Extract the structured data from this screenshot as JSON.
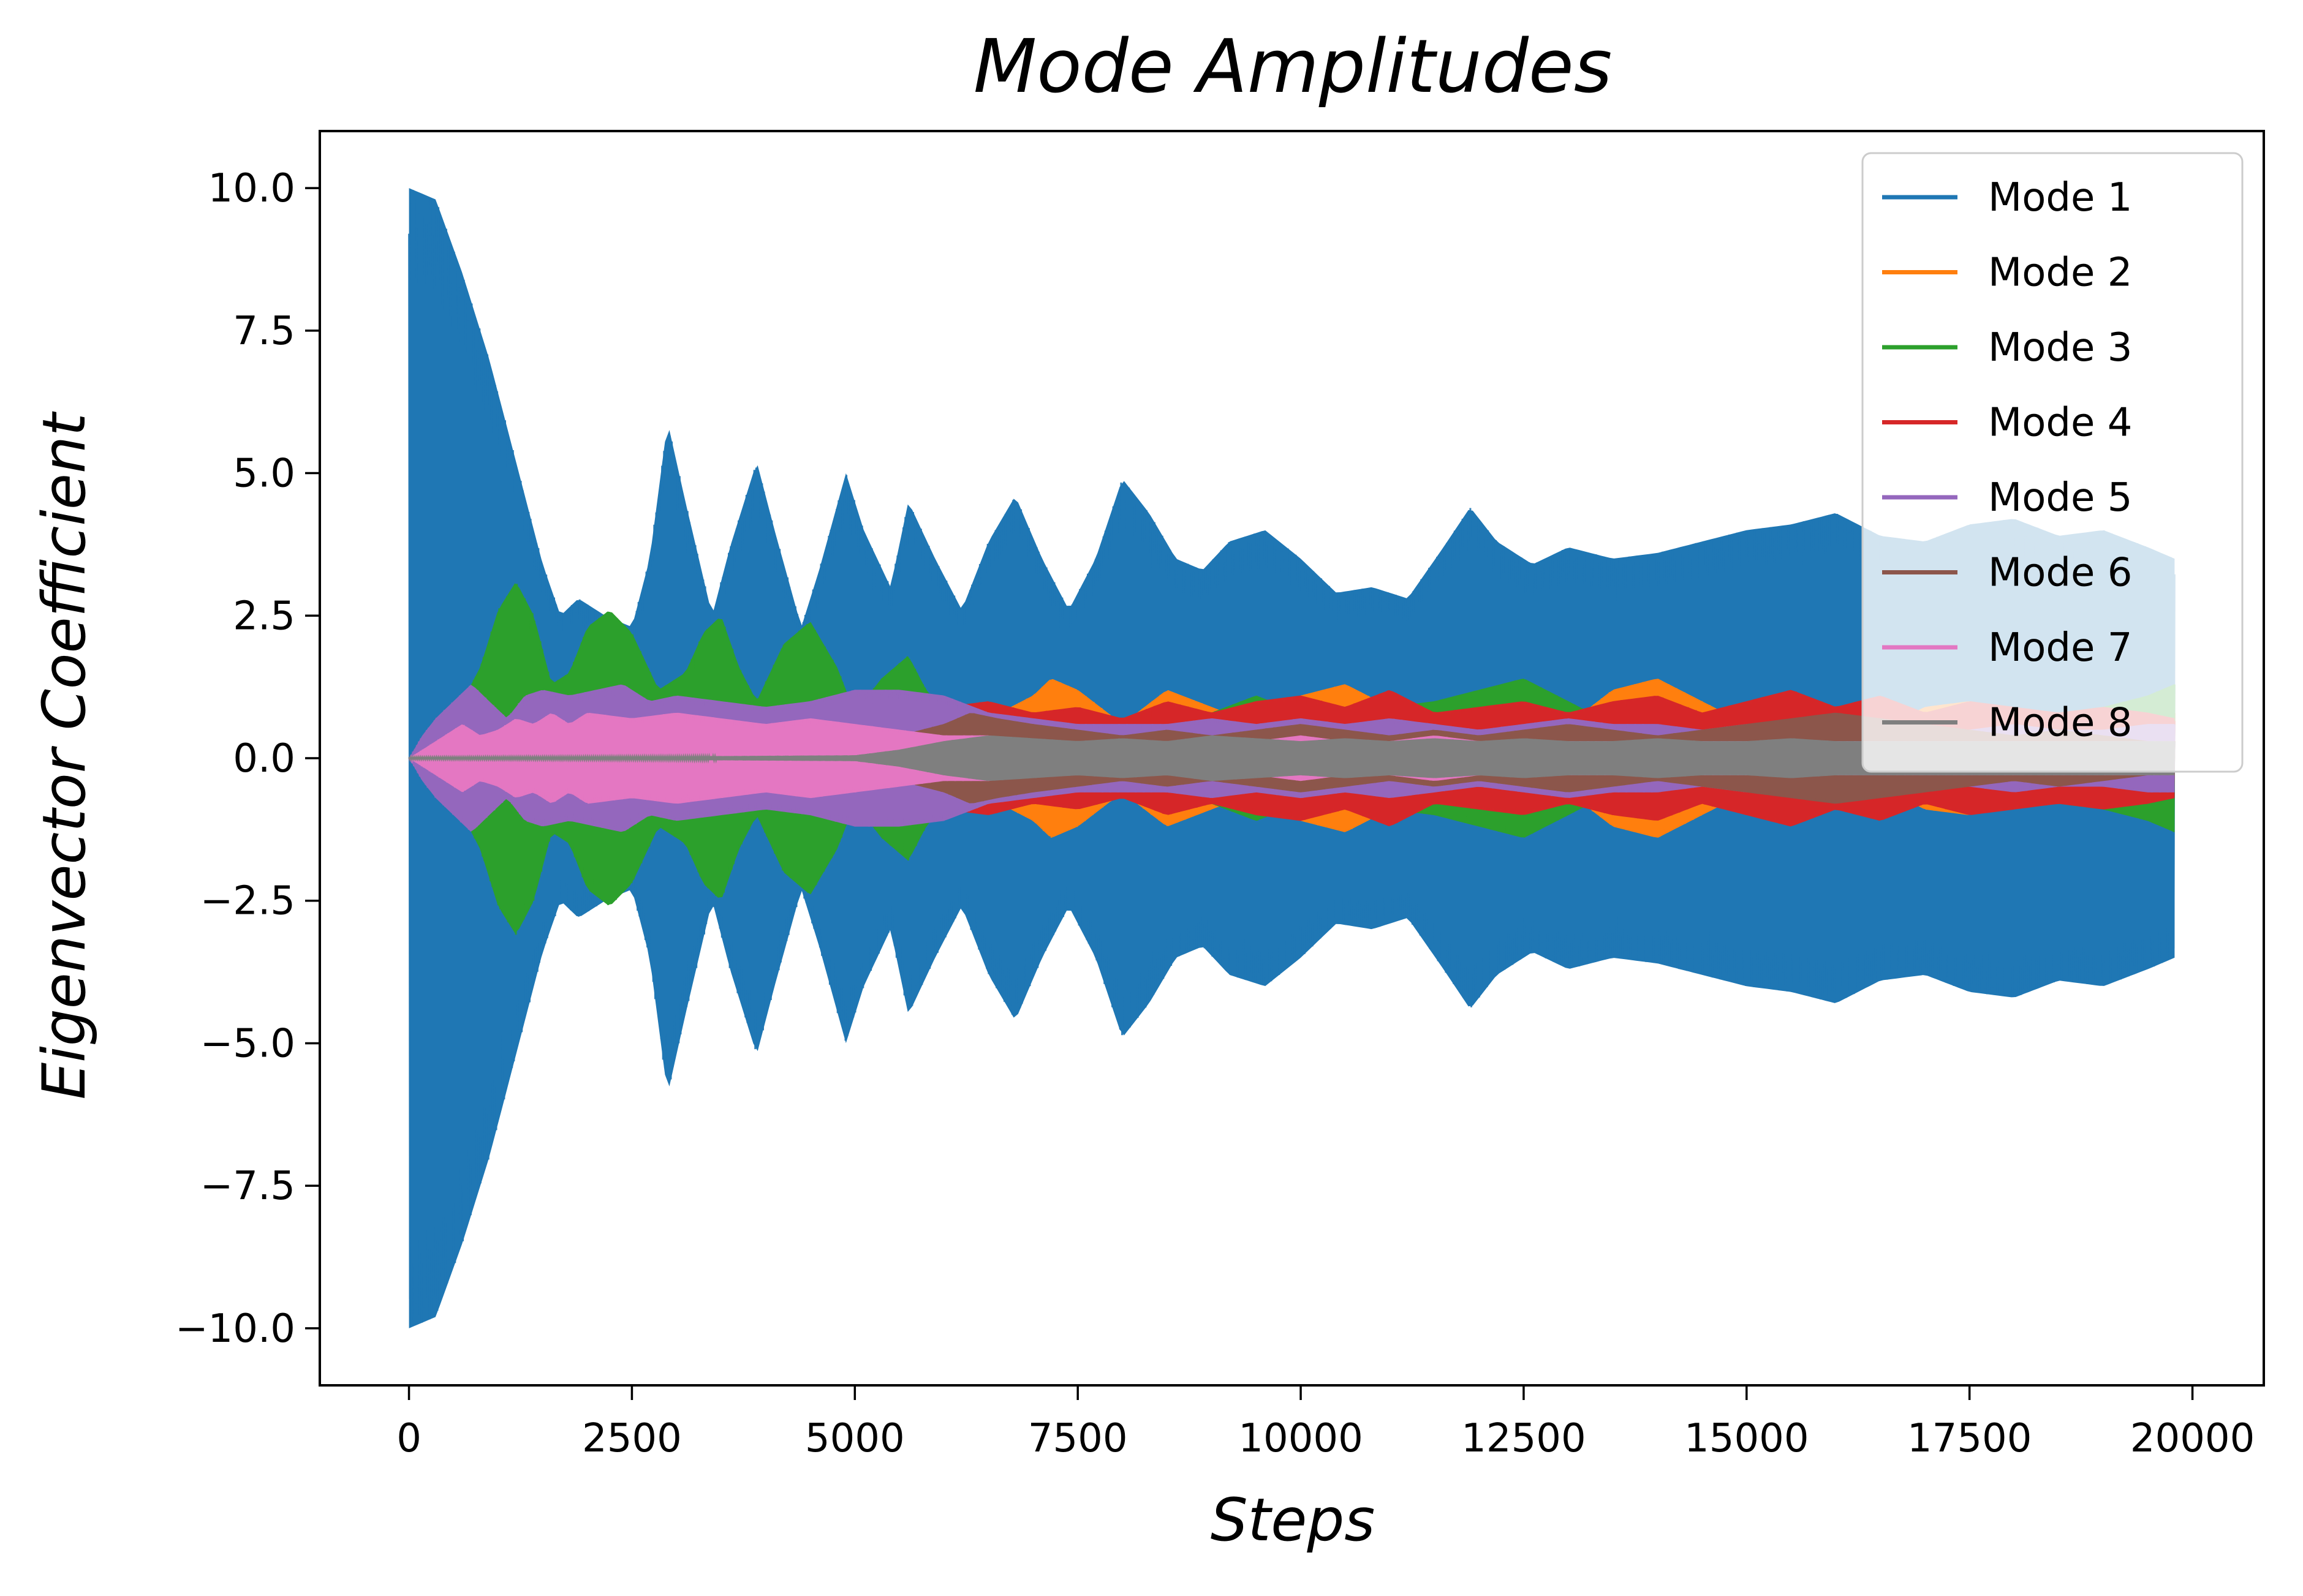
{
  "chart_data": {
    "type": "line",
    "title": "Mode Amplitudes",
    "xlabel": "Steps",
    "ylabel": "Eigenvector Coefficient",
    "xlim": [
      -1000,
      20800
    ],
    "ylim": [
      -11,
      11
    ],
    "xticks": [
      0,
      2500,
      5000,
      7500,
      10000,
      12500,
      15000,
      17500,
      20000
    ],
    "xtick_labels": [
      "0",
      "2500",
      "5000",
      "7500",
      "10000",
      "12500",
      "15000",
      "17500",
      "20000"
    ],
    "yticks": [
      10.0,
      7.5,
      5.0,
      2.5,
      0.0,
      -2.5,
      -5.0,
      -7.5,
      -10.0
    ],
    "ytick_labels": [
      "10.0",
      "7.5",
      "5.0",
      "2.5",
      "0.0",
      "−2.5",
      "−5.0",
      "−7.5",
      "−10.0"
    ],
    "grid": false,
    "legend_position": "top-right",
    "x_range": [
      0,
      19800
    ],
    "note_series_shape": "dense oscillations; values below are the upper envelope (amplitude); the lower envelope mirrors it",
    "series": [
      {
        "name": "Mode 1",
        "color": "#1f77b4",
        "envelope_x": [
          0,
          300,
          600,
          900,
          1200,
          1500,
          1700,
          1900,
          2200,
          2500,
          2700,
          2900,
          3100,
          3400,
          3600,
          3900,
          4100,
          4400,
          4600,
          4900,
          5100,
          5400,
          5600,
          5900,
          6200,
          6500,
          6800,
          7100,
          7400,
          7700,
          8000,
          8300,
          8600,
          8900,
          9200,
          9600,
          10000,
          10400,
          10800,
          11200,
          11600,
          11900,
          12200,
          12600,
          13000,
          13500,
          14000,
          14500,
          15000,
          15500,
          16000,
          16500,
          17000,
          17500,
          18000,
          18500,
          19000,
          19500,
          19800
        ],
        "envelope": [
          10.0,
          9.8,
          8.5,
          7.0,
          5.2,
          3.4,
          2.5,
          2.8,
          2.5,
          2.3,
          3.5,
          5.9,
          4.5,
          2.5,
          3.7,
          5.2,
          4.0,
          2.3,
          3.3,
          5.0,
          4.0,
          3.0,
          4.5,
          3.5,
          2.6,
          3.8,
          4.6,
          3.5,
          2.6,
          3.5,
          4.9,
          4.3,
          3.5,
          3.3,
          3.8,
          4.0,
          3.5,
          2.9,
          3.0,
          2.8,
          3.7,
          4.4,
          3.8,
          3.4,
          3.7,
          3.5,
          3.6,
          3.8,
          4.0,
          4.1,
          4.3,
          3.9,
          3.8,
          4.1,
          4.2,
          3.9,
          4.0,
          3.7,
          3.5
        ]
      },
      {
        "name": "Mode 2",
        "color": "#ff7f0e",
        "envelope_x": [
          0,
          4000,
          5500,
          6500,
          7000,
          7200,
          7500,
          8000,
          8500,
          9000,
          9500,
          10000,
          10500,
          11000,
          11500,
          12000,
          12500,
          13000,
          13500,
          14000,
          14500,
          15000,
          15500,
          16000,
          16500,
          17000,
          17500,
          18000,
          18500,
          19000,
          19500,
          19800
        ],
        "envelope": [
          0.0,
          0.05,
          0.2,
          0.7,
          1.1,
          1.4,
          1.2,
          0.6,
          1.2,
          0.9,
          0.6,
          1.1,
          1.3,
          0.9,
          0.5,
          0.6,
          0.8,
          0.6,
          1.2,
          1.4,
          1.0,
          0.6,
          0.8,
          0.9,
          0.5,
          0.9,
          1.0,
          0.7,
          0.5,
          0.8,
          0.9,
          0.8
        ]
      },
      {
        "name": "Mode 3",
        "color": "#2ca02c",
        "envelope_x": [
          0,
          250,
          500,
          800,
          1000,
          1200,
          1400,
          1600,
          1800,
          2000,
          2250,
          2500,
          2800,
          3100,
          3300,
          3500,
          3700,
          3900,
          4200,
          4500,
          4800,
          5000,
          5300,
          5600,
          5800,
          6100,
          6500,
          7000,
          7500,
          8000,
          8500,
          9000,
          9500,
          10000,
          10500,
          11000,
          11500,
          12000,
          12500,
          13000,
          13500,
          14000,
          14500,
          15000,
          15500,
          16000,
          16500,
          17000,
          17500,
          18000,
          18500,
          19000,
          19500,
          19800
        ],
        "envelope": [
          0.0,
          0.6,
          0.7,
          1.6,
          2.6,
          3.1,
          2.5,
          1.3,
          1.5,
          2.3,
          2.6,
          2.2,
          1.2,
          1.5,
          2.2,
          2.5,
          1.6,
          1.0,
          2.0,
          2.4,
          1.6,
          0.8,
          1.4,
          1.8,
          1.2,
          0.6,
          0.5,
          0.4,
          0.5,
          0.6,
          0.6,
          0.8,
          1.1,
          0.8,
          0.6,
          0.9,
          1.0,
          1.2,
          1.4,
          1.0,
          0.6,
          0.7,
          0.8,
          0.5,
          0.6,
          0.7,
          0.5,
          0.5,
          0.6,
          0.7,
          0.8,
          0.9,
          1.1,
          1.3
        ]
      },
      {
        "name": "Mode 4",
        "color": "#d62728",
        "envelope_x": [
          0,
          4000,
          5000,
          5500,
          6000,
          6500,
          7000,
          7500,
          8000,
          8500,
          9000,
          9500,
          10000,
          10500,
          11000,
          11500,
          12000,
          12500,
          13000,
          13500,
          14000,
          14500,
          15000,
          15500,
          16000,
          16500,
          17000,
          17500,
          18000,
          18500,
          19000,
          19500,
          19800
        ],
        "envelope": [
          0.0,
          0.1,
          0.3,
          0.6,
          0.9,
          1.0,
          0.8,
          0.9,
          0.7,
          1.0,
          0.8,
          1.0,
          1.1,
          0.9,
          1.2,
          0.8,
          0.9,
          1.0,
          0.8,
          1.0,
          1.1,
          0.8,
          1.0,
          1.2,
          0.9,
          1.1,
          0.8,
          1.0,
          0.9,
          0.8,
          0.9,
          0.8,
          0.7
        ]
      },
      {
        "name": "Mode 5",
        "color": "#9467bd",
        "envelope_x": [
          0,
          150,
          300,
          500,
          700,
          900,
          1100,
          1300,
          1500,
          1800,
          2100,
          2400,
          2700,
          3000,
          3500,
          4000,
          4500,
          5000,
          5500,
          6000,
          6500,
          7000,
          7500,
          8000,
          8500,
          9000,
          9500,
          10000,
          10500,
          11000,
          11500,
          12000,
          12500,
          13000,
          13500,
          14000,
          14500,
          15000,
          15500,
          16000,
          16500,
          17000,
          17500,
          18000,
          18500,
          19000,
          19500,
          19800
        ],
        "envelope": [
          0.0,
          0.4,
          0.7,
          1.0,
          1.3,
          1.0,
          0.7,
          1.1,
          1.2,
          1.1,
          1.2,
          1.3,
          1.0,
          1.1,
          1.0,
          0.9,
          1.0,
          1.2,
          1.2,
          1.1,
          0.8,
          0.7,
          0.6,
          0.6,
          0.6,
          0.7,
          0.6,
          0.7,
          0.6,
          0.7,
          0.6,
          0.5,
          0.6,
          0.7,
          0.6,
          0.6,
          0.5,
          0.6,
          0.5,
          0.5,
          0.6,
          0.5,
          0.5,
          0.6,
          0.5,
          0.5,
          0.6,
          0.6
        ]
      },
      {
        "name": "Mode 6",
        "color": "#8c564b",
        "envelope_x": [
          0,
          4000,
          5000,
          5500,
          6000,
          6300,
          6600,
          7000,
          7500,
          8000,
          8500,
          9000,
          9500,
          10000,
          10500,
          11000,
          11500,
          12000,
          12500,
          13000,
          13500,
          14000,
          14500,
          15000,
          15500,
          16000,
          16500,
          17000,
          17500,
          18000,
          18500,
          19000,
          19500,
          19800
        ],
        "envelope": [
          0.0,
          0.05,
          0.15,
          0.4,
          0.6,
          0.8,
          0.7,
          0.6,
          0.5,
          0.4,
          0.5,
          0.4,
          0.5,
          0.6,
          0.5,
          0.4,
          0.5,
          0.4,
          0.5,
          0.6,
          0.5,
          0.4,
          0.5,
          0.6,
          0.7,
          0.8,
          0.7,
          0.6,
          0.5,
          0.4,
          0.5,
          0.4,
          0.3,
          0.3
        ]
      },
      {
        "name": "Mode 7",
        "color": "#e377c2",
        "envelope_x": [
          0,
          200,
          400,
          600,
          800,
          1000,
          1200,
          1400,
          1600,
          1800,
          2000,
          2500,
          3000,
          3500,
          4000,
          4500,
          5000,
          5500,
          6000,
          6500,
          7000,
          7500,
          8000,
          8500,
          9000,
          9500,
          10000,
          10500,
          11000,
          11500,
          12000,
          12500,
          13000,
          13500,
          14000,
          14500,
          15000,
          15500,
          16000,
          16500,
          17000,
          17500,
          18000,
          18500,
          19000,
          19500,
          19800
        ],
        "envelope": [
          0.0,
          0.2,
          0.4,
          0.6,
          0.4,
          0.5,
          0.7,
          0.6,
          0.8,
          0.6,
          0.8,
          0.7,
          0.8,
          0.7,
          0.6,
          0.7,
          0.6,
          0.5,
          0.4,
          0.4,
          0.3,
          0.3,
          0.3,
          0.3,
          0.3,
          0.3,
          0.4,
          0.3,
          0.3,
          0.4,
          0.3,
          0.3,
          0.3,
          0.3,
          0.3,
          0.3,
          0.3,
          0.3,
          0.3,
          0.3,
          0.3,
          0.3,
          0.3,
          0.3,
          0.3,
          0.3,
          0.3
        ]
      },
      {
        "name": "Mode 8",
        "color": "#7f7f7f",
        "envelope_x": [
          0,
          3000,
          5000,
          5500,
          6000,
          6500,
          7000,
          7500,
          8000,
          8500,
          9000,
          9500,
          10000,
          10500,
          11000,
          11500,
          12000,
          12500,
          13000,
          13500,
          14000,
          14500,
          15000,
          15500,
          16000,
          16500,
          17000,
          17500,
          18000,
          18500,
          19000,
          19500,
          19800
        ],
        "envelope": [
          0.02,
          0.03,
          0.05,
          0.15,
          0.3,
          0.4,
          0.35,
          0.3,
          0.35,
          0.3,
          0.4,
          0.35,
          0.3,
          0.35,
          0.3,
          0.35,
          0.3,
          0.35,
          0.3,
          0.3,
          0.35,
          0.3,
          0.3,
          0.35,
          0.3,
          0.3,
          0.3,
          0.3,
          0.3,
          0.3,
          0.3,
          0.3,
          0.3
        ]
      }
    ]
  }
}
